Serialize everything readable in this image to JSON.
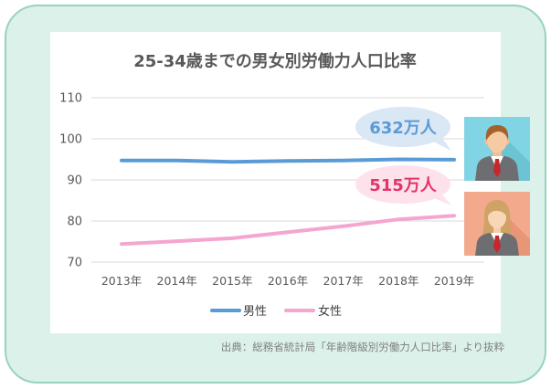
{
  "chart_data": {
    "type": "line",
    "title": "25-34歳までの男女別労働力人口比率",
    "xlabel": "",
    "ylabel": "",
    "categories": [
      "2013年",
      "2014年",
      "2015年",
      "2016年",
      "2017年",
      "2018年",
      "2019年"
    ],
    "series": [
      {
        "name": "男性",
        "values": [
          94.7,
          94.7,
          94.4,
          94.6,
          94.7,
          95.0,
          94.9
        ],
        "color": "#5b9bd5"
      },
      {
        "name": "女性",
        "values": [
          74.4,
          75.1,
          75.8,
          77.3,
          78.7,
          80.4,
          81.3
        ],
        "color": "#f4a6cf"
      }
    ],
    "ylim": [
      70,
      110
    ],
    "yticks": [
      70,
      80,
      90,
      100,
      110
    ],
    "grid": true,
    "legend": "bottom",
    "annotations": [
      {
        "text": "632万人",
        "color": "#5b9bd5",
        "fill": "#dae7f5"
      },
      {
        "text": "515万人",
        "color": "#e4346a",
        "fill": "#fde2ec"
      }
    ]
  },
  "source": "出典：総務省統計局「年齢階級別労働力人口比率」より抜粋",
  "icons": {
    "male": "male-avatar-icon",
    "female": "female-avatar-icon"
  },
  "colors": {
    "frame_border": "#98d3bd",
    "frame_background": "#dcf1ea"
  }
}
